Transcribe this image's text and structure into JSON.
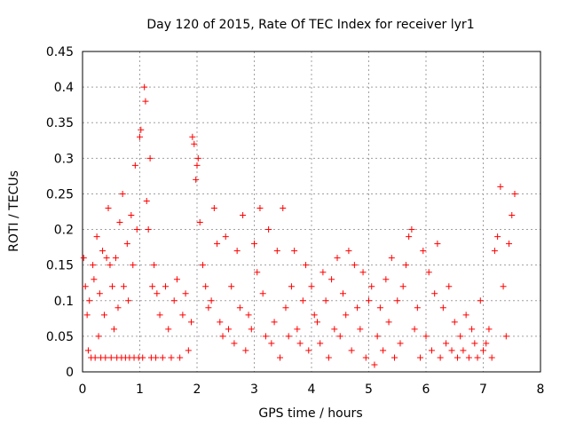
{
  "chart_data": {
    "type": "scatter",
    "title": "Day 120 of 2015, Rate Of TEC Index for receiver lyr1",
    "xlabel": "GPS time / hours",
    "ylabel": "ROTI / TECUs",
    "xlim": [
      0,
      8
    ],
    "ylim": [
      0,
      0.45
    ],
    "xticks": [
      "0",
      "1",
      "2",
      "3",
      "4",
      "5",
      "6",
      "7",
      "8"
    ],
    "yticks": [
      "0",
      "0.05",
      "0.1",
      "0.15",
      "0.2",
      "0.25",
      "0.3",
      "0.35",
      "0.4",
      "0.45"
    ],
    "grid": true,
    "marker": "+",
    "color": "#ff0000",
    "series": [
      {
        "name": "ROTI",
        "x": [
          0.02,
          0.05,
          0.08,
          0.1,
          0.12,
          0.15,
          0.18,
          0.2,
          0.22,
          0.25,
          0.28,
          0.3,
          0.32,
          0.35,
          0.38,
          0.4,
          0.42,
          0.45,
          0.48,
          0.5,
          0.52,
          0.55,
          0.58,
          0.6,
          0.62,
          0.65,
          0.68,
          0.7,
          0.72,
          0.75,
          0.78,
          0.8,
          0.82,
          0.85,
          0.88,
          0.9,
          0.92,
          0.95,
          0.98,
          1.0,
          1.02,
          1.05,
          1.08,
          1.1,
          1.12,
          1.15,
          1.18,
          1.2,
          1.22,
          1.25,
          1.28,
          1.3,
          1.35,
          1.4,
          1.45,
          1.5,
          1.55,
          1.6,
          1.65,
          1.7,
          1.75,
          1.8,
          1.85,
          1.9,
          1.92,
          1.95,
          1.98,
          2.0,
          2.02,
          2.05,
          2.1,
          2.15,
          2.2,
          2.25,
          2.3,
          2.35,
          2.4,
          2.45,
          2.5,
          2.55,
          2.6,
          2.65,
          2.7,
          2.75,
          2.8,
          2.85,
          2.9,
          2.95,
          3.0,
          3.05,
          3.1,
          3.15,
          3.2,
          3.25,
          3.3,
          3.35,
          3.4,
          3.45,
          3.5,
          3.55,
          3.6,
          3.65,
          3.7,
          3.75,
          3.8,
          3.85,
          3.9,
          3.95,
          4.0,
          4.05,
          4.1,
          4.15,
          4.2,
          4.25,
          4.3,
          4.35,
          4.4,
          4.45,
          4.5,
          4.55,
          4.6,
          4.65,
          4.7,
          4.75,
          4.8,
          4.85,
          4.9,
          4.95,
          5.0,
          5.05,
          5.1,
          5.15,
          5.2,
          5.25,
          5.3,
          5.35,
          5.4,
          5.45,
          5.5,
          5.55,
          5.6,
          5.65,
          5.7,
          5.75,
          5.8,
          5.85,
          5.9,
          5.95,
          6.0,
          6.05,
          6.1,
          6.15,
          6.2,
          6.25,
          6.3,
          6.35,
          6.4,
          6.45,
          6.5,
          6.55,
          6.6,
          6.65,
          6.7,
          6.75,
          6.8,
          6.85,
          6.9,
          6.95,
          7.0,
          7.05,
          7.1,
          7.15,
          7.2,
          7.25,
          7.3,
          7.35,
          7.4,
          7.45,
          7.5,
          7.55
        ],
        "y": [
          0.16,
          0.12,
          0.08,
          0.03,
          0.1,
          0.02,
          0.15,
          0.13,
          0.02,
          0.19,
          0.05,
          0.11,
          0.02,
          0.17,
          0.08,
          0.02,
          0.16,
          0.23,
          0.15,
          0.02,
          0.12,
          0.06,
          0.16,
          0.02,
          0.09,
          0.21,
          0.02,
          0.25,
          0.12,
          0.02,
          0.18,
          0.1,
          0.02,
          0.22,
          0.15,
          0.02,
          0.29,
          0.2,
          0.02,
          0.33,
          0.34,
          0.02,
          0.4,
          0.38,
          0.24,
          0.2,
          0.3,
          0.02,
          0.12,
          0.15,
          0.02,
          0.11,
          0.08,
          0.02,
          0.12,
          0.06,
          0.02,
          0.1,
          0.13,
          0.02,
          0.08,
          0.11,
          0.03,
          0.07,
          0.33,
          0.32,
          0.27,
          0.29,
          0.3,
          0.21,
          0.15,
          0.12,
          0.09,
          0.1,
          0.23,
          0.18,
          0.07,
          0.05,
          0.19,
          0.06,
          0.12,
          0.04,
          0.17,
          0.09,
          0.22,
          0.03,
          0.08,
          0.06,
          0.18,
          0.14,
          0.23,
          0.11,
          0.05,
          0.2,
          0.04,
          0.07,
          0.17,
          0.02,
          0.23,
          0.09,
          0.05,
          0.12,
          0.17,
          0.06,
          0.04,
          0.1,
          0.15,
          0.03,
          0.12,
          0.08,
          0.07,
          0.04,
          0.14,
          0.1,
          0.02,
          0.13,
          0.06,
          0.16,
          0.05,
          0.11,
          0.08,
          0.17,
          0.03,
          0.15,
          0.09,
          0.06,
          0.14,
          0.02,
          0.1,
          0.12,
          0.01,
          0.05,
          0.09,
          0.03,
          0.13,
          0.07,
          0.16,
          0.02,
          0.1,
          0.04,
          0.12,
          0.15,
          0.19,
          0.2,
          0.06,
          0.09,
          0.02,
          0.17,
          0.05,
          0.14,
          0.03,
          0.11,
          0.18,
          0.02,
          0.09,
          0.04,
          0.12,
          0.03,
          0.07,
          0.02,
          0.05,
          0.03,
          0.08,
          0.02,
          0.06,
          0.04,
          0.02,
          0.1,
          0.03,
          0.04,
          0.06,
          0.02,
          0.17,
          0.19,
          0.26,
          0.12,
          0.05,
          0.18,
          0.22,
          0.25
        ]
      }
    ]
  }
}
